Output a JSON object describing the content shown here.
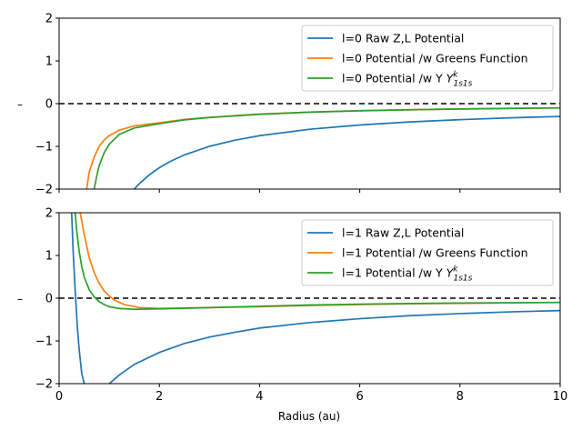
{
  "chart_data": [
    {
      "type": "line",
      "xlim": [
        0,
        10
      ],
      "ylim": [
        -2,
        2
      ],
      "xticks": [
        "0",
        "2",
        "4",
        "6",
        "8",
        "10"
      ],
      "yticks": [
        "−2",
        "−1",
        "0",
        "1",
        "2"
      ],
      "xlabel": "",
      "ylabel": "–",
      "legend_position": "upper-right",
      "reference_line": {
        "y": 0,
        "style": "dashed",
        "color": "#000000"
      },
      "series": [
        {
          "name": "l=0 Raw Z,L Potential",
          "color": "#1f77b4",
          "x": [
            1.5,
            1.6,
            1.8,
            2.0,
            2.2,
            2.5,
            3.0,
            3.5,
            4.0,
            5.0,
            6.0,
            7.0,
            8.0,
            9.0,
            10.0
          ],
          "y": [
            -2.0,
            -1.875,
            -1.667,
            -1.5,
            -1.364,
            -1.2,
            -1.0,
            -0.857,
            -0.75,
            -0.6,
            -0.5,
            -0.429,
            -0.375,
            -0.333,
            -0.3
          ]
        },
        {
          "name": "l=0 Potential /w Greens Function",
          "color": "#ff7f0e",
          "x": [
            0.55,
            0.6,
            0.7,
            0.8,
            0.9,
            1.0,
            1.2,
            1.5,
            2.0,
            2.5,
            3.0,
            4.0,
            5.0,
            6.0,
            7.0,
            8.0,
            9.0,
            10.0
          ],
          "y": [
            -2.0,
            -1.6,
            -1.25,
            -1.0,
            -0.85,
            -0.75,
            -0.62,
            -0.52,
            -0.45,
            -0.37,
            -0.32,
            -0.245,
            -0.2,
            -0.165,
            -0.143,
            -0.125,
            -0.111,
            -0.1
          ]
        },
        {
          "name": "l=0 Potential /w Y",
          "color": "#2ca02c",
          "x": [
            0.7,
            0.75,
            0.8,
            0.9,
            1.0,
            1.2,
            1.5,
            2.0,
            2.5,
            3.0,
            4.0,
            5.0,
            6.0,
            7.0,
            8.0,
            9.0,
            10.0
          ],
          "y": [
            -2.0,
            -1.7,
            -1.45,
            -1.15,
            -0.95,
            -0.72,
            -0.57,
            -0.47,
            -0.38,
            -0.325,
            -0.25,
            -0.2,
            -0.167,
            -0.143,
            -0.125,
            -0.111,
            -0.1
          ]
        }
      ]
    },
    {
      "type": "line",
      "xlim": [
        0,
        10
      ],
      "ylim": [
        -2,
        2
      ],
      "xticks": [
        "0",
        "2",
        "4",
        "6",
        "8",
        "10"
      ],
      "yticks": [
        "−2",
        "−1",
        "0",
        "1",
        "2"
      ],
      "xlabel": "Radius (au)",
      "ylabel": "–",
      "legend_position": "upper-right",
      "reference_line": {
        "y": 0,
        "style": "dashed",
        "color": "#000000"
      },
      "series": [
        {
          "name": "l=1 Raw Z,L Potential",
          "color": "#1f77b4",
          "x": [
            0.25,
            0.28,
            0.32,
            0.36,
            0.4,
            0.45,
            0.5
          ],
          "y": [
            2.0,
            1.1,
            0.2,
            -0.6,
            -1.2,
            -1.75,
            -2.0
          ],
          "x2": [
            1.0,
            1.2,
            1.5,
            2.0,
            2.5,
            3.0,
            3.5,
            4.0,
            5.0,
            6.0,
            7.0,
            8.0,
            9.0,
            10.0
          ],
          "y2": [
            -2.0,
            -1.8,
            -1.55,
            -1.27,
            -1.06,
            -0.91,
            -0.8,
            -0.7,
            -0.57,
            -0.48,
            -0.41,
            -0.36,
            -0.32,
            -0.29
          ]
        },
        {
          "name": "l=1 Potential /w Greens Function",
          "color": "#ff7f0e",
          "x": [
            0.42,
            0.5,
            0.6,
            0.7,
            0.8,
            0.9,
            1.0,
            1.1,
            1.3,
            1.6,
            2.0,
            3.0,
            4.0,
            5.0,
            6.0,
            7.0,
            8.0,
            9.0,
            10.0
          ],
          "y": [
            2.0,
            1.5,
            0.95,
            0.6,
            0.35,
            0.17,
            0.05,
            -0.04,
            -0.15,
            -0.22,
            -0.24,
            -0.22,
            -0.2,
            -0.17,
            -0.15,
            -0.13,
            -0.12,
            -0.11,
            -0.1
          ],
          "join_next_xy": true
        },
        {
          "name": "l=1 Potential /w Y",
          "color": "#2ca02c",
          "x": [
            0.32,
            0.35,
            0.4,
            0.45,
            0.5,
            0.6,
            0.7,
            0.8,
            0.9,
            1.0,
            1.2,
            1.5,
            2.0,
            3.0,
            4.0,
            5.0,
            6.0,
            7.0,
            8.0,
            9.0,
            10.0
          ],
          "y": [
            2.0,
            1.6,
            1.1,
            0.75,
            0.5,
            0.2,
            0.03,
            -0.08,
            -0.15,
            -0.2,
            -0.24,
            -0.26,
            -0.25,
            -0.22,
            -0.19,
            -0.16,
            -0.14,
            -0.125,
            -0.115,
            -0.105,
            -0.1
          ]
        }
      ]
    }
  ],
  "legend_math_suffix": {
    "base": "Y",
    "sup": "k",
    "sub": "1s1s"
  }
}
